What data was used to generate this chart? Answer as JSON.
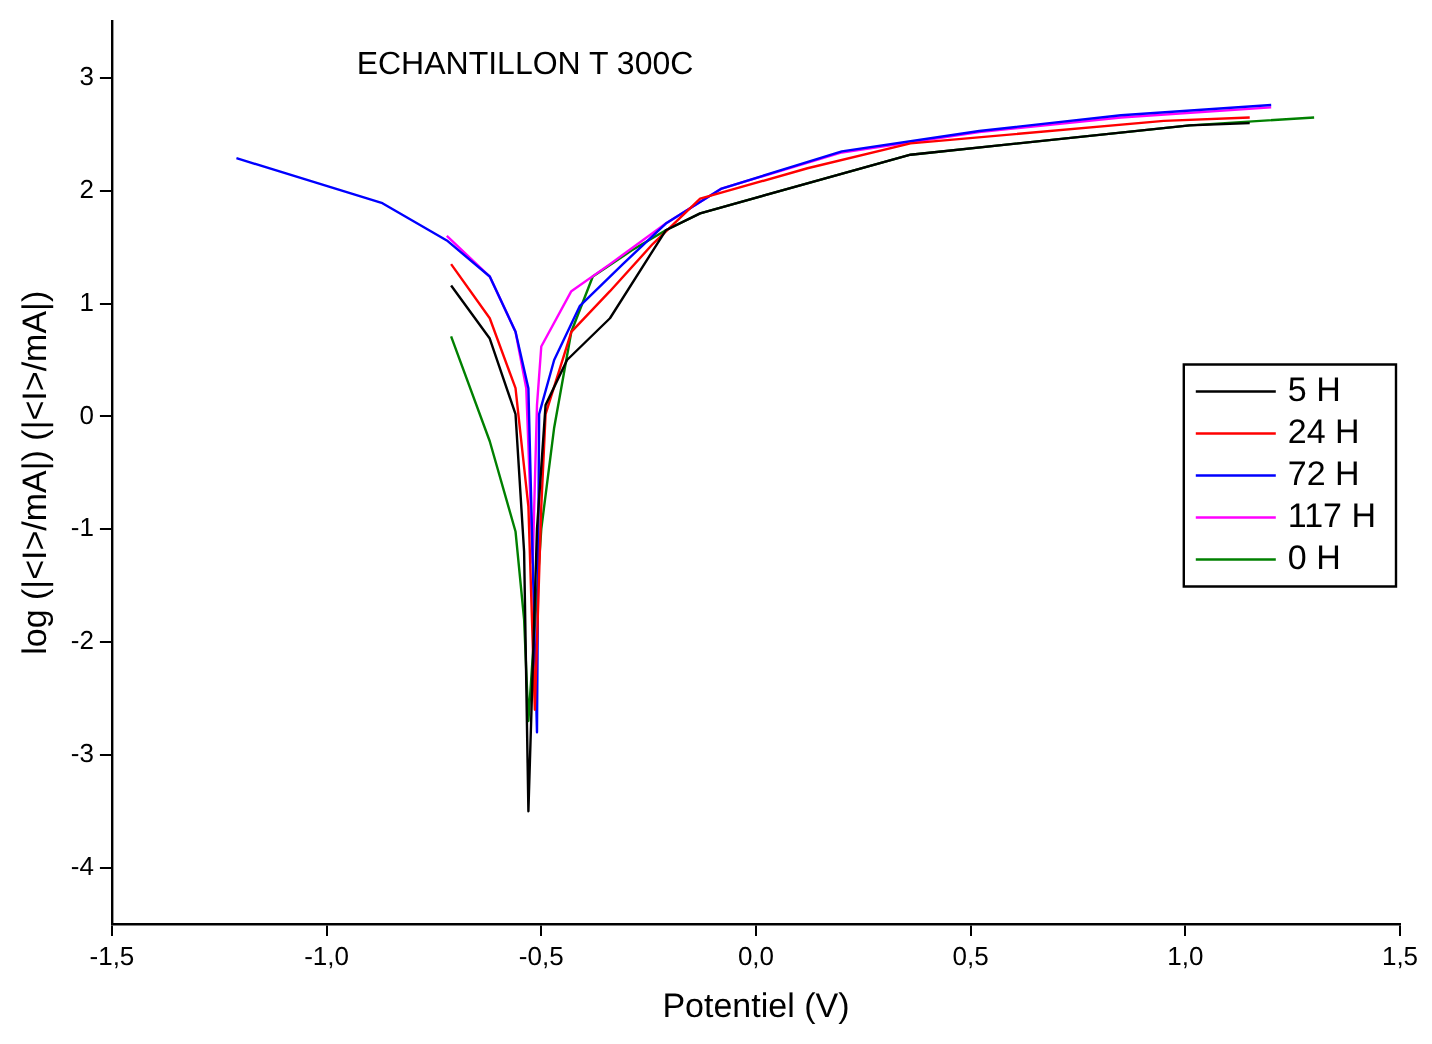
{
  "chart_data": {
    "type": "line",
    "title": "ECHANTILLON T 300C",
    "xlabel": "Potentiel (V)",
    "ylabel": "log (|<I>/mA|) (|<I>/mA|)",
    "xlim": [
      -1.5,
      1.5
    ],
    "ylim": [
      -4.5,
      3.5
    ],
    "xticks": [
      {
        "value": -1.5,
        "label": "-1,5"
      },
      {
        "value": -1,
        "label": "-1,0"
      },
      {
        "value": -0.5,
        "label": "-0,5"
      },
      {
        "value": 0,
        "label": "0,0"
      },
      {
        "value": 0.5,
        "label": "0,5"
      },
      {
        "value": 1,
        "label": "1,0"
      },
      {
        "value": 1.5,
        "label": "1,5"
      }
    ],
    "yticks": [
      -4,
      -3,
      -2,
      -1,
      0,
      1,
      2,
      3
    ],
    "legend": "right",
    "grid": false,
    "marker": "none",
    "line_style": "solid",
    "series": [
      {
        "name": "5 H",
        "color": "#000000",
        "x": [
          -0.71,
          -0.62,
          -0.56,
          -0.54,
          -0.53,
          -0.51,
          -0.49,
          -0.44,
          -0.34,
          -0.21,
          -0.13,
          0.36,
          1.01,
          1.15
        ],
        "values": [
          1.16,
          0.69,
          0.02,
          -1.2,
          -3.5,
          -1.0,
          0.1,
          0.5,
          0.87,
          1.65,
          1.8,
          2.32,
          2.58,
          2.6
        ]
      },
      {
        "name": "24 H",
        "color": "#ff0000",
        "x": [
          -0.71,
          -0.62,
          -0.56,
          -0.53,
          -0.515,
          -0.5,
          -0.49,
          -0.43,
          -0.34,
          -0.24,
          -0.13,
          0.12,
          0.36,
          0.95,
          1.15
        ],
        "values": [
          1.35,
          0.87,
          0.25,
          -0.8,
          -2.6,
          -0.8,
          0.02,
          0.75,
          1.11,
          1.53,
          1.93,
          2.2,
          2.42,
          2.62,
          2.65
        ]
      },
      {
        "name": "72 H",
        "color": "#0000ff",
        "x": [
          -1.21,
          -0.87,
          -0.72,
          -0.62,
          -0.56,
          -0.53,
          -0.51,
          -0.505,
          -0.47,
          -0.41,
          -0.31,
          -0.21,
          -0.08,
          0.2,
          0.52,
          0.85,
          1.2
        ],
        "values": [
          2.29,
          1.89,
          1.56,
          1.24,
          0.75,
          0.25,
          -2.8,
          0.02,
          0.5,
          0.98,
          1.35,
          1.71,
          2.02,
          2.35,
          2.53,
          2.67,
          2.76
        ]
      },
      {
        "name": "117 H",
        "color": "#ff00ff",
        "x": [
          -0.72,
          -0.62,
          -0.56,
          -0.535,
          -0.52,
          -0.51,
          -0.5,
          -0.43,
          -0.34,
          -0.21,
          -0.08,
          0.2,
          0.52,
          0.85,
          1.2
        ],
        "values": [
          1.6,
          1.24,
          0.75,
          0.25,
          -1.3,
          0.1,
          0.62,
          1.11,
          1.35,
          1.71,
          2.02,
          2.34,
          2.52,
          2.65,
          2.74
        ]
      },
      {
        "name": "0 H",
        "color": "#008000",
        "x": [
          -0.71,
          -0.62,
          -0.56,
          -0.54,
          -0.53,
          -0.5,
          -0.47,
          -0.43,
          -0.38,
          -0.29,
          -0.21,
          -0.13,
          0.36,
          1.01,
          1.3
        ],
        "values": [
          0.71,
          -0.22,
          -1.02,
          -1.8,
          -2.7,
          -1.0,
          -0.1,
          0.75,
          1.24,
          1.47,
          1.65,
          1.8,
          2.32,
          2.58,
          2.65
        ]
      }
    ]
  }
}
